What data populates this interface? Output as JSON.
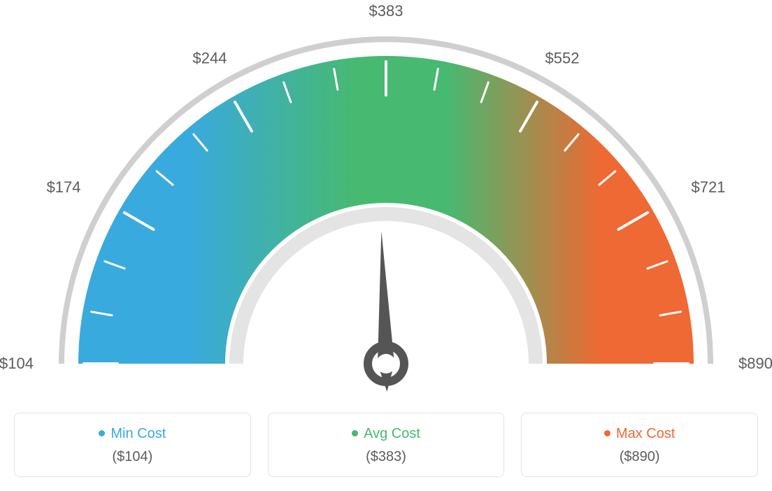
{
  "gauge": {
    "type": "gauge",
    "min_value": 104,
    "avg_value": 383,
    "max_value": 890,
    "tick_labels": [
      "$104",
      "$174",
      "$244",
      "$383",
      "$552",
      "$721",
      "$890"
    ],
    "colors": {
      "min": "#39aade",
      "avg": "#47b971",
      "max": "#ee6933",
      "track": "#e4e4e4",
      "outline": "#cfcfcf",
      "tick": "#ffffff",
      "needle": "#555555",
      "label_text": "#5c5c5c"
    },
    "label_fontsize": 22,
    "outer_radius": 440,
    "inner_radius": 230,
    "needle_angle_deg": 92,
    "background_color": "#ffffff"
  },
  "legend": {
    "min": {
      "label": "Min Cost",
      "value": "($104)",
      "color": "#39aade"
    },
    "avg": {
      "label": "Avg Cost",
      "value": "($383)",
      "color": "#47b971"
    },
    "max": {
      "label": "Max Cost",
      "value": "($890)",
      "color": "#ee6933"
    },
    "value_color": "#5c5c5c",
    "border_color": "#e3e3e3"
  }
}
